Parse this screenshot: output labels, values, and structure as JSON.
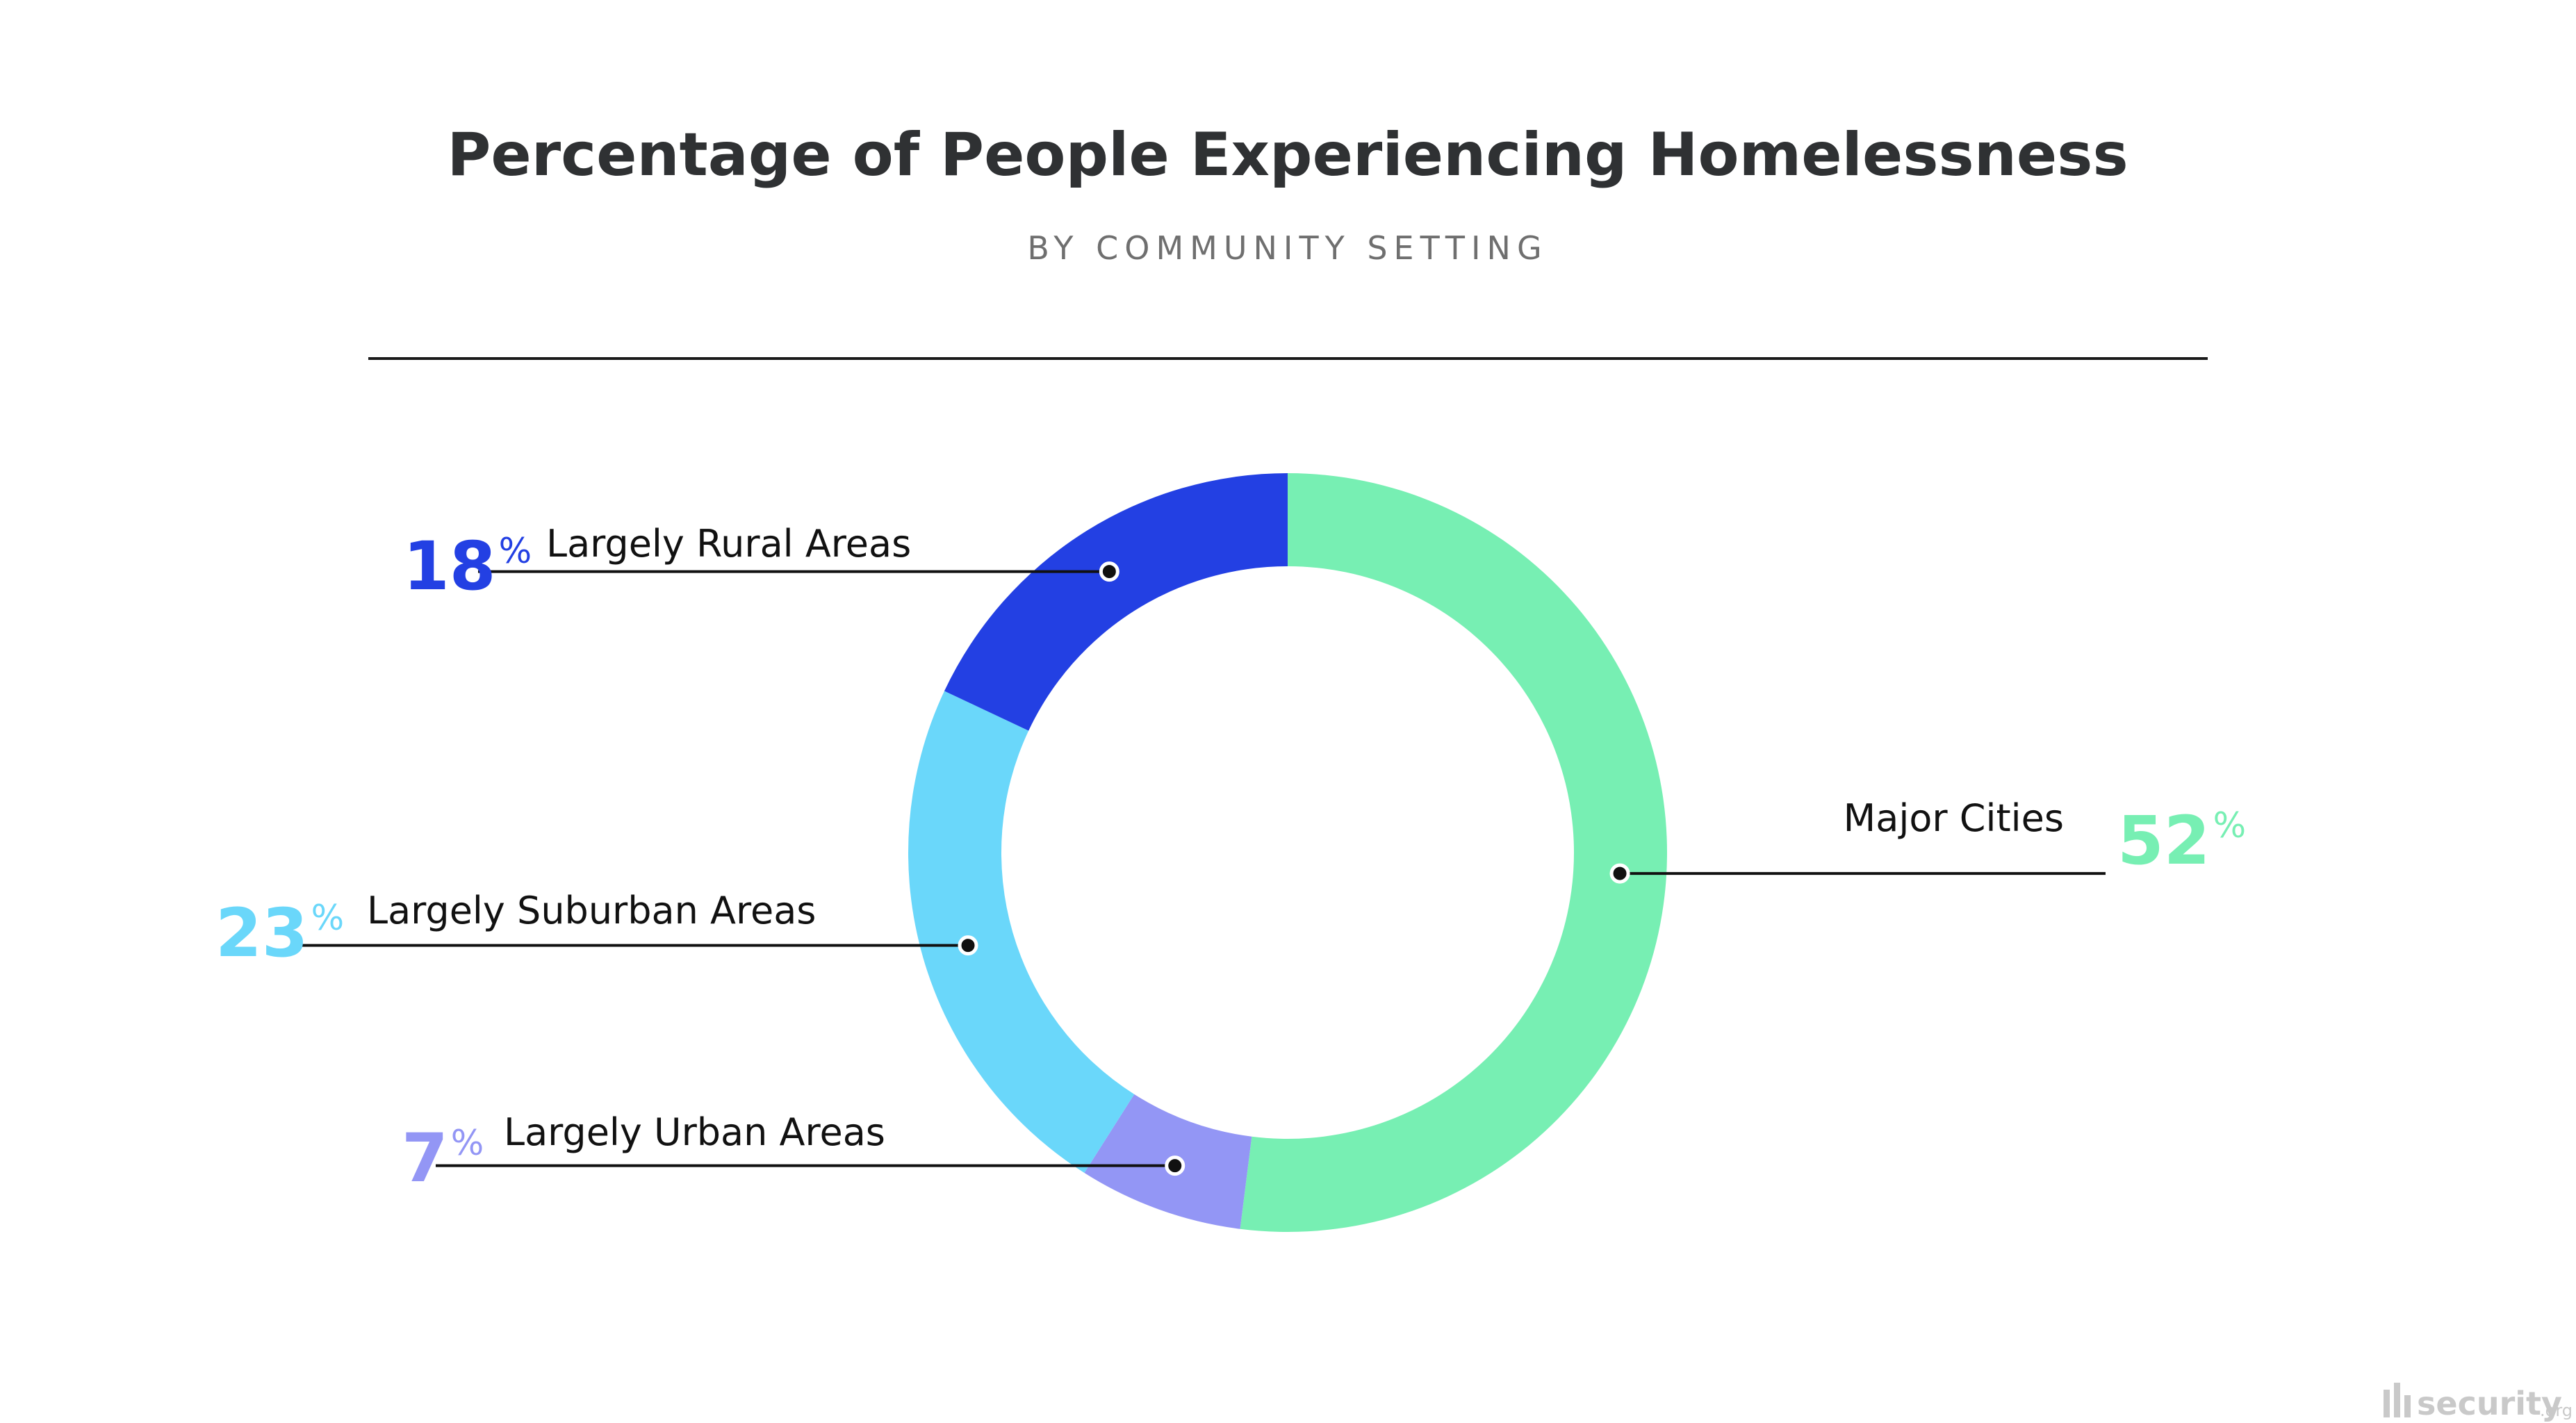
{
  "chart_data": {
    "type": "pie",
    "title": "Percentage of People Experiencing Homelessness",
    "subtitle": "BY COMMUNITY SETTING",
    "unit": "%",
    "donut": true,
    "slices": [
      {
        "label": "Major Cities",
        "value": 52,
        "color": "#77EFB3"
      },
      {
        "label": "Largely Urban Areas",
        "value": 7,
        "color": "#9396F5"
      },
      {
        "label": "Largely Suburban Areas",
        "value": 23,
        "color": "#6AD7FA"
      },
      {
        "label": "Largely Rural Areas",
        "value": 18,
        "color": "#2340E3"
      }
    ]
  },
  "watermark": {
    "brand": "security",
    "suffix": ".org",
    "icon": "security-org-logo-icon",
    "color": "#C9C9C9"
  }
}
